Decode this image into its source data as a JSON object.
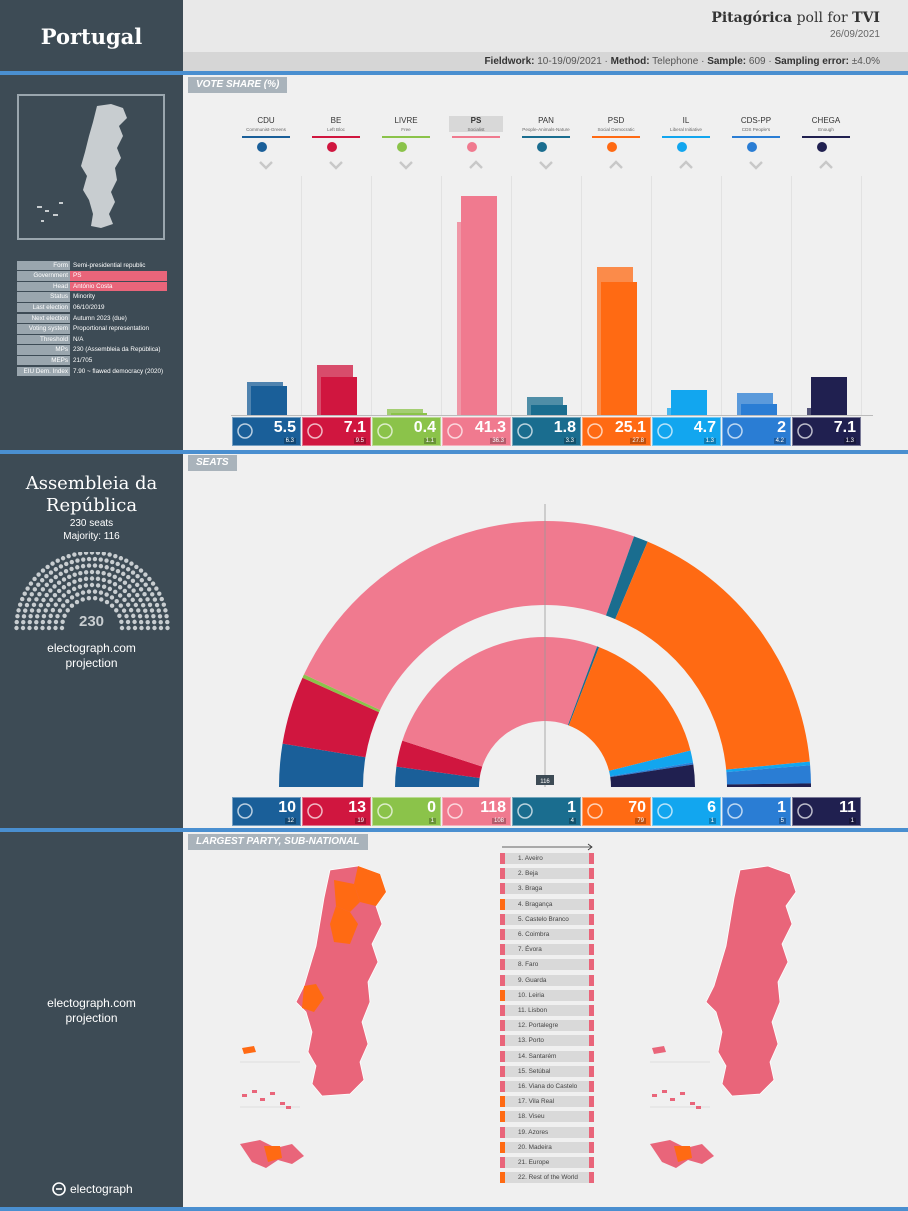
{
  "header": {
    "country": "Portugal",
    "pollster": "Pitagórica",
    "poll_for_text": "poll for",
    "client": "TVI",
    "date": "26/09/2021"
  },
  "fieldwork": {
    "fieldwork_label": "Fieldwork:",
    "fieldwork": "10-19/09/2021",
    "method_label": "Method:",
    "method": "Telephone",
    "sample_label": "Sample:",
    "sample": "609",
    "error_label": "Sampling error:",
    "error": "±4.0%"
  },
  "sections": {
    "vote_share": "VOTE SHARE (%)",
    "seats": "SEATS",
    "largest": "LARGEST PARTY, SUB-NATIONAL"
  },
  "info": [
    {
      "k": "Form",
      "v": "Semi-presidential republic",
      "hl": false
    },
    {
      "k": "Government",
      "v": "PS",
      "hl": true
    },
    {
      "k": "Head",
      "v": "António Costa",
      "hl": true
    },
    {
      "k": "Status",
      "v": "Minority",
      "hl": false
    },
    {
      "k": "Last election",
      "v": "06/10/2019",
      "hl": false
    },
    {
      "k": "Next election",
      "v": "Autumn 2023 (due)",
      "hl": false
    },
    {
      "k": "Voting system",
      "v": "Proportional representation",
      "hl": false
    },
    {
      "k": "Threshold",
      "v": "N/A",
      "hl": false
    },
    {
      "k": "MPs",
      "v": "230 (Assembleia da República)",
      "hl": false
    },
    {
      "k": "MEPs",
      "v": "21/705",
      "hl": false
    },
    {
      "k": "EIU Dem. Index",
      "v": "7.90 ~ flawed democracy (2020)",
      "hl": false
    }
  ],
  "assembly": {
    "name": "Assembleia da República",
    "seats_text": "230 seats",
    "majority_text": "Majority: 116",
    "total": "230",
    "projection1": "electograph.com",
    "projection2": "projection"
  },
  "projection2": {
    "line1": "electograph.com",
    "line2": "projection"
  },
  "brand": "electograph",
  "majority_marker": "116",
  "chart_data": [
    {
      "type": "bar",
      "title": "VOTE SHARE (%)",
      "categories": [
        "CDU",
        "BE",
        "LIVRE",
        "PS",
        "PAN",
        "PSD",
        "IL",
        "CDS-PP",
        "CHEGA"
      ],
      "descriptions": [
        "Communist-Greens",
        "Left Bloc",
        "Free",
        "Socialist",
        "People-Animals-Nature",
        "Social Democratic",
        "Liberal Initiative",
        "CDS People's",
        "Enough"
      ],
      "trend": [
        "down",
        "down",
        "down",
        "up",
        "down",
        "up",
        "up",
        "down",
        "up"
      ],
      "colors": [
        "#1a5f99",
        "#d0163f",
        "#8bc34a",
        "#f07a8f",
        "#1a6d8f",
        "#ff6a13",
        "#12a6ef",
        "#2a7dd4",
        "#202050"
      ],
      "series": [
        {
          "name": "Pitagórica 26/09/2021",
          "values": [
            5.5,
            7.1,
            0.4,
            41.3,
            1.8,
            25.1,
            4.7,
            2.0,
            7.1
          ]
        },
        {
          "name": "Last election 2019",
          "values": [
            6.3,
            9.5,
            1.1,
            36.3,
            3.3,
            27.8,
            1.3,
            4.2,
            1.3
          ]
        }
      ],
      "ylim": [
        0,
        45
      ]
    },
    {
      "type": "bar",
      "title": "SEATS",
      "categories": [
        "CDU",
        "BE",
        "LIVRE",
        "PS",
        "PAN",
        "PSD",
        "IL",
        "CDS-PP",
        "CHEGA"
      ],
      "series": [
        {
          "name": "Projection",
          "values": [
            10,
            13,
            0,
            118,
            1,
            70,
            6,
            1,
            11
          ]
        },
        {
          "name": "Last election 2019",
          "values": [
            12,
            19,
            1,
            108,
            4,
            79,
            1,
            5,
            1
          ]
        }
      ],
      "total": 230,
      "majority": 116
    }
  ],
  "regions": [
    {
      "n": "1. Aveiro",
      "c": "#e9657a"
    },
    {
      "n": "2. Beja",
      "c": "#e9657a"
    },
    {
      "n": "3. Braga",
      "c": "#e9657a"
    },
    {
      "n": "4. Bragança",
      "c": "#ff6a13"
    },
    {
      "n": "5. Castelo Branco",
      "c": "#e9657a"
    },
    {
      "n": "6. Coimbra",
      "c": "#e9657a"
    },
    {
      "n": "7. Évora",
      "c": "#e9657a"
    },
    {
      "n": "8. Faro",
      "c": "#e9657a"
    },
    {
      "n": "9. Guarda",
      "c": "#e9657a"
    },
    {
      "n": "10. Leiria",
      "c": "#ff6a13"
    },
    {
      "n": "11. Lisbon",
      "c": "#e9657a"
    },
    {
      "n": "12. Portalegre",
      "c": "#e9657a"
    },
    {
      "n": "13. Porto",
      "c": "#e9657a"
    },
    {
      "n": "14. Santarém",
      "c": "#e9657a"
    },
    {
      "n": "15. Setúbal",
      "c": "#e9657a"
    },
    {
      "n": "16. Viana do Castelo",
      "c": "#e9657a"
    },
    {
      "n": "17. Vila Real",
      "c": "#ff6a13"
    },
    {
      "n": "18. Viseu",
      "c": "#ff6a13"
    },
    {
      "n": "19. Azores",
      "c": "#e9657a"
    },
    {
      "n": "20. Madeira",
      "c": "#ff6a13"
    },
    {
      "n": "21. Europe",
      "c": "#e9657a"
    },
    {
      "n": "22. Rest of the World",
      "c": "#ff6a13"
    }
  ]
}
